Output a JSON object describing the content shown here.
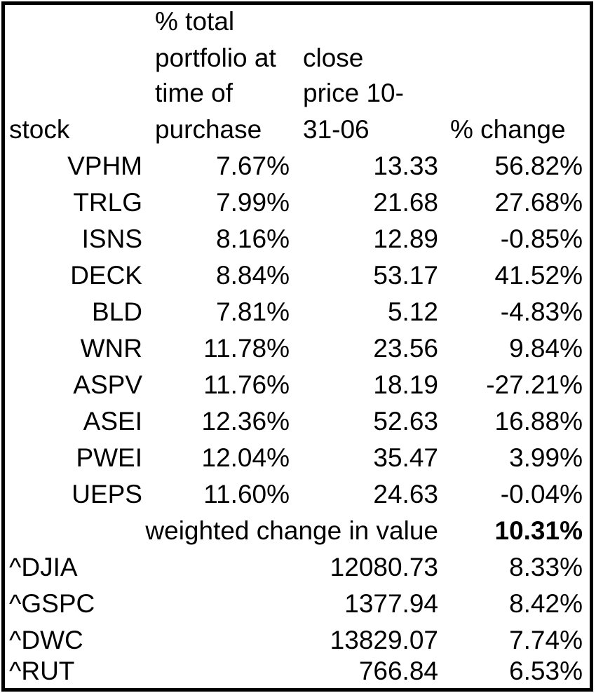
{
  "header": {
    "stock": "stock",
    "pct_total": [
      "% total",
      "portfolio at",
      "time of",
      "purchase"
    ],
    "close_price": [
      "close",
      "price 10-",
      "31-06"
    ],
    "pct_change": "% change"
  },
  "rows": [
    {
      "stock": "VPHM",
      "pct": "7.67%",
      "close": "13.33",
      "change": "56.82%"
    },
    {
      "stock": "TRLG",
      "pct": "7.99%",
      "close": "21.68",
      "change": "27.68%"
    },
    {
      "stock": "ISNS",
      "pct": "8.16%",
      "close": "12.89",
      "change": "-0.85%"
    },
    {
      "stock": "DECK",
      "pct": "8.84%",
      "close": "53.17",
      "change": "41.52%"
    },
    {
      "stock": "BLD",
      "pct": "7.81%",
      "close": "5.12",
      "change": "-4.83%"
    },
    {
      "stock": "WNR",
      "pct": "11.78%",
      "close": "23.56",
      "change": "9.84%"
    },
    {
      "stock": "ASPV",
      "pct": "11.76%",
      "close": "18.19",
      "change": "-27.21%"
    },
    {
      "stock": "ASEI",
      "pct": "12.36%",
      "close": "52.63",
      "change": "16.88%"
    },
    {
      "stock": "PWEI",
      "pct": "12.04%",
      "close": "35.47",
      "change": "3.99%"
    },
    {
      "stock": "UEPS",
      "pct": "11.60%",
      "close": "24.63",
      "change": "-0.04%"
    }
  ],
  "weighted": {
    "label": "weighted change in value",
    "value": "10.31%"
  },
  "indexes": [
    {
      "name": "^DJIA",
      "close": "12080.73",
      "change": "8.33%"
    },
    {
      "name": "^GSPC",
      "close": "1377.94",
      "change": "8.42%"
    },
    {
      "name": "^DWC",
      "close": "13829.07",
      "change": "7.74%"
    },
    {
      "name": "^RUT",
      "close": "766.84",
      "change": "6.53%"
    }
  ]
}
